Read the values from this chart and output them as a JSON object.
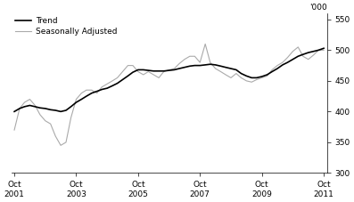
{
  "ylabel": "'000",
  "ylim": [
    300,
    560
  ],
  "yticks": [
    300,
    350,
    400,
    450,
    500,
    550
  ],
  "legend_entries": [
    "Trend",
    "Seasonally Adjusted"
  ],
  "trend_color": "#000000",
  "sa_color": "#aaaaaa",
  "background_color": "#ffffff",
  "x_start": 2001.75,
  "x_end": 2011.75,
  "xtick_positions": [
    2001.75,
    2003.75,
    2005.75,
    2007.75,
    2009.75,
    2011.75
  ],
  "xtick_labels": [
    "Oct\n2001",
    "Oct\n2003",
    "Oct\n2005",
    "Oct\n2007",
    "Oct\n2009",
    "Oct\n2011"
  ],
  "trend_x": [
    2001.75,
    2001.92,
    2002.08,
    2002.25,
    2002.42,
    2002.58,
    2002.75,
    2002.92,
    2003.08,
    2003.25,
    2003.42,
    2003.58,
    2003.75,
    2003.92,
    2004.08,
    2004.25,
    2004.42,
    2004.58,
    2004.75,
    2004.92,
    2005.08,
    2005.25,
    2005.42,
    2005.58,
    2005.75,
    2005.92,
    2006.08,
    2006.25,
    2006.42,
    2006.58,
    2006.75,
    2006.92,
    2007.08,
    2007.25,
    2007.42,
    2007.58,
    2007.75,
    2007.92,
    2008.08,
    2008.25,
    2008.42,
    2008.58,
    2008.75,
    2008.92,
    2009.08,
    2009.25,
    2009.42,
    2009.58,
    2009.75,
    2009.92,
    2010.08,
    2010.25,
    2010.42,
    2010.58,
    2010.75,
    2010.92,
    2011.08,
    2011.25,
    2011.42,
    2011.58,
    2011.75
  ],
  "trend_y": [
    400,
    405,
    408,
    410,
    408,
    406,
    405,
    403,
    402,
    400,
    402,
    408,
    415,
    420,
    425,
    430,
    433,
    436,
    438,
    442,
    446,
    452,
    458,
    464,
    468,
    468,
    467,
    466,
    466,
    466,
    467,
    468,
    470,
    472,
    474,
    475,
    475,
    476,
    477,
    476,
    474,
    472,
    470,
    468,
    462,
    458,
    455,
    455,
    457,
    460,
    465,
    470,
    476,
    480,
    485,
    490,
    493,
    496,
    498,
    500,
    503
  ],
  "sa_x": [
    2001.75,
    2001.92,
    2002.08,
    2002.25,
    2002.42,
    2002.58,
    2002.75,
    2002.92,
    2003.08,
    2003.25,
    2003.42,
    2003.58,
    2003.75,
    2003.92,
    2004.08,
    2004.25,
    2004.42,
    2004.58,
    2004.75,
    2004.92,
    2005.08,
    2005.25,
    2005.42,
    2005.58,
    2005.75,
    2005.92,
    2006.08,
    2006.25,
    2006.42,
    2006.58,
    2006.75,
    2006.92,
    2007.08,
    2007.25,
    2007.42,
    2007.58,
    2007.75,
    2007.92,
    2008.08,
    2008.25,
    2008.42,
    2008.58,
    2008.75,
    2008.92,
    2009.08,
    2009.25,
    2009.42,
    2009.58,
    2009.75,
    2009.92,
    2010.08,
    2010.25,
    2010.42,
    2010.58,
    2010.75,
    2010.92,
    2011.08,
    2011.25,
    2011.42,
    2011.58,
    2011.75
  ],
  "sa_y": [
    370,
    405,
    415,
    420,
    410,
    395,
    385,
    380,
    360,
    345,
    350,
    390,
    420,
    430,
    435,
    435,
    430,
    440,
    445,
    450,
    455,
    465,
    475,
    475,
    465,
    460,
    465,
    460,
    455,
    465,
    468,
    470,
    478,
    485,
    490,
    490,
    480,
    510,
    480,
    470,
    465,
    460,
    455,
    462,
    455,
    450,
    448,
    452,
    455,
    458,
    468,
    475,
    480,
    488,
    498,
    505,
    490,
    485,
    492,
    500,
    500
  ]
}
